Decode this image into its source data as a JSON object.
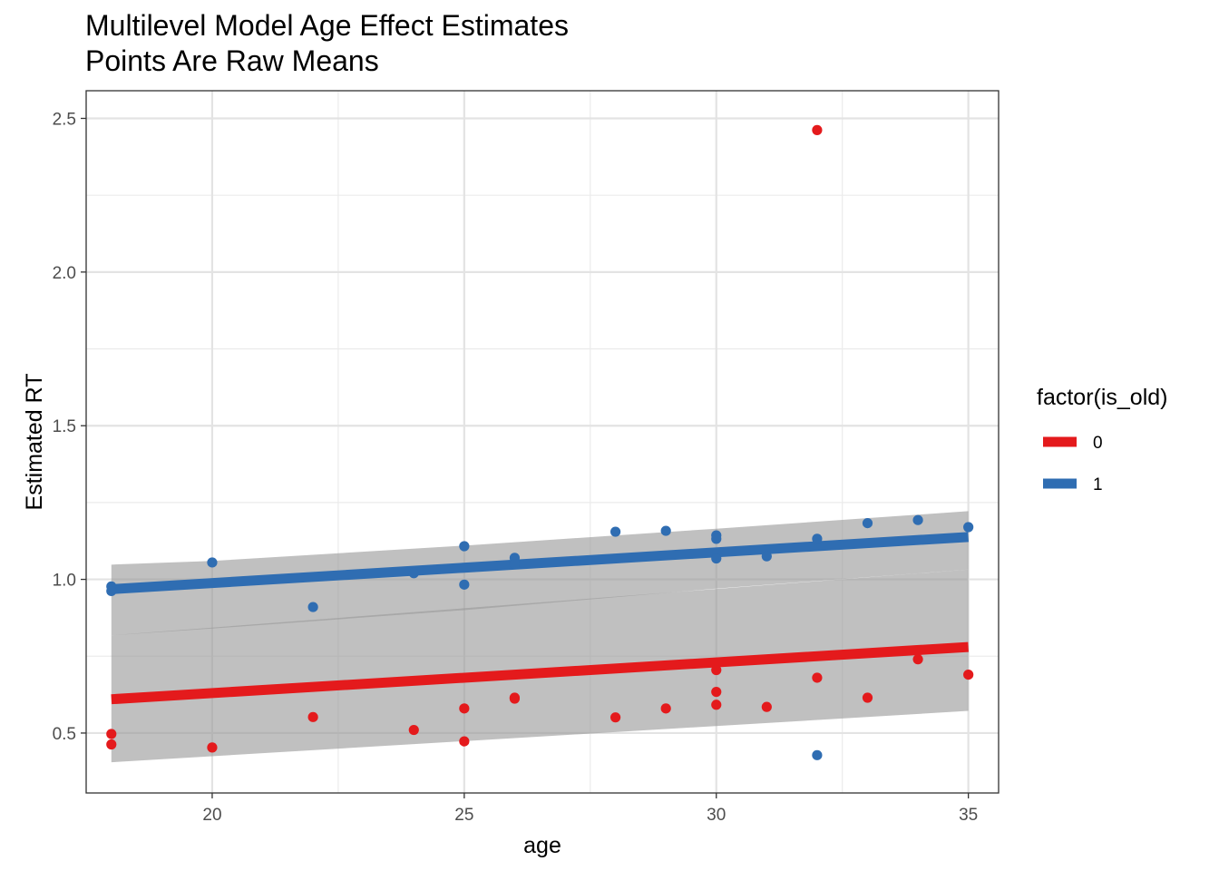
{
  "chart_data": {
    "type": "scatter",
    "title": "Multilevel Model Age Effect Estimates",
    "subtitle": "Points Are Raw Means",
    "xlabel": "age",
    "ylabel": "Estimated RT",
    "xlim": [
      17.5,
      35.6
    ],
    "ylim": [
      0.305,
      2.59
    ],
    "x_ticks": [
      20,
      25,
      30,
      35
    ],
    "x_tick_labels": [
      "20",
      "25",
      "30",
      "35"
    ],
    "y_ticks": [
      0.5,
      1.0,
      1.5,
      2.0,
      2.5
    ],
    "y_tick_labels": [
      "0.5",
      "1.0",
      "1.5",
      "2.0",
      "2.5"
    ],
    "grid": true,
    "legend": {
      "title": "factor(is_old)",
      "position": "right",
      "entries": [
        {
          "label": "0",
          "color": "#E41A1C"
        },
        {
          "label": "1",
          "color": "#2F6DB2"
        }
      ]
    },
    "bands": [
      {
        "group": "0",
        "x": [
          18,
          35
        ],
        "lower": [
          0.405,
          0.572
        ],
        "upper": [
          0.818,
          1.032
        ],
        "color": "#999999"
      },
      {
        "group": "1",
        "x": [
          18,
          20,
          25,
          30,
          35
        ],
        "lower": [
          0.818,
          0.84,
          0.9,
          0.97,
          1.032
        ],
        "upper": [
          1.048,
          1.06,
          1.11,
          1.165,
          1.222
        ],
        "color": "#999999"
      }
    ],
    "series": [
      {
        "name": "0",
        "color": "#E41A1C",
        "fit": {
          "x": [
            18,
            35
          ],
          "y": [
            0.61,
            0.78
          ]
        },
        "points": [
          {
            "x": 18,
            "y": 0.497
          },
          {
            "x": 18,
            "y": 0.463
          },
          {
            "x": 20,
            "y": 0.453
          },
          {
            "x": 22,
            "y": 0.552
          },
          {
            "x": 24,
            "y": 0.51
          },
          {
            "x": 25,
            "y": 0.58
          },
          {
            "x": 25,
            "y": 0.473
          },
          {
            "x": 26,
            "y": 0.612
          },
          {
            "x": 26,
            "y": 0.615
          },
          {
            "x": 28,
            "y": 0.551
          },
          {
            "x": 29,
            "y": 0.58
          },
          {
            "x": 30,
            "y": 0.705
          },
          {
            "x": 30,
            "y": 0.634
          },
          {
            "x": 30,
            "y": 0.592
          },
          {
            "x": 31,
            "y": 0.585
          },
          {
            "x": 32,
            "y": 2.462
          },
          {
            "x": 32,
            "y": 0.68
          },
          {
            "x": 33,
            "y": 0.615
          },
          {
            "x": 34,
            "y": 0.74
          },
          {
            "x": 35,
            "y": 0.69
          }
        ]
      },
      {
        "name": "1",
        "color": "#2F6DB2",
        "fit": {
          "x": [
            18,
            35
          ],
          "y": [
            0.968,
            1.138
          ]
        },
        "points": [
          {
            "x": 18,
            "y": 0.977
          },
          {
            "x": 18,
            "y": 0.962
          },
          {
            "x": 20,
            "y": 1.055
          },
          {
            "x": 22,
            "y": 0.91
          },
          {
            "x": 24,
            "y": 1.02
          },
          {
            "x": 25,
            "y": 1.108
          },
          {
            "x": 25,
            "y": 0.983
          },
          {
            "x": 26,
            "y": 1.07
          },
          {
            "x": 26,
            "y": 1.05
          },
          {
            "x": 28,
            "y": 1.155
          },
          {
            "x": 29,
            "y": 1.158
          },
          {
            "x": 30,
            "y": 1.143
          },
          {
            "x": 30,
            "y": 1.132
          },
          {
            "x": 30,
            "y": 1.068
          },
          {
            "x": 31,
            "y": 1.075
          },
          {
            "x": 32,
            "y": 1.132
          },
          {
            "x": 32,
            "y": 0.428
          },
          {
            "x": 33,
            "y": 1.183
          },
          {
            "x": 34,
            "y": 1.193
          },
          {
            "x": 35,
            "y": 1.17
          }
        ]
      }
    ]
  }
}
